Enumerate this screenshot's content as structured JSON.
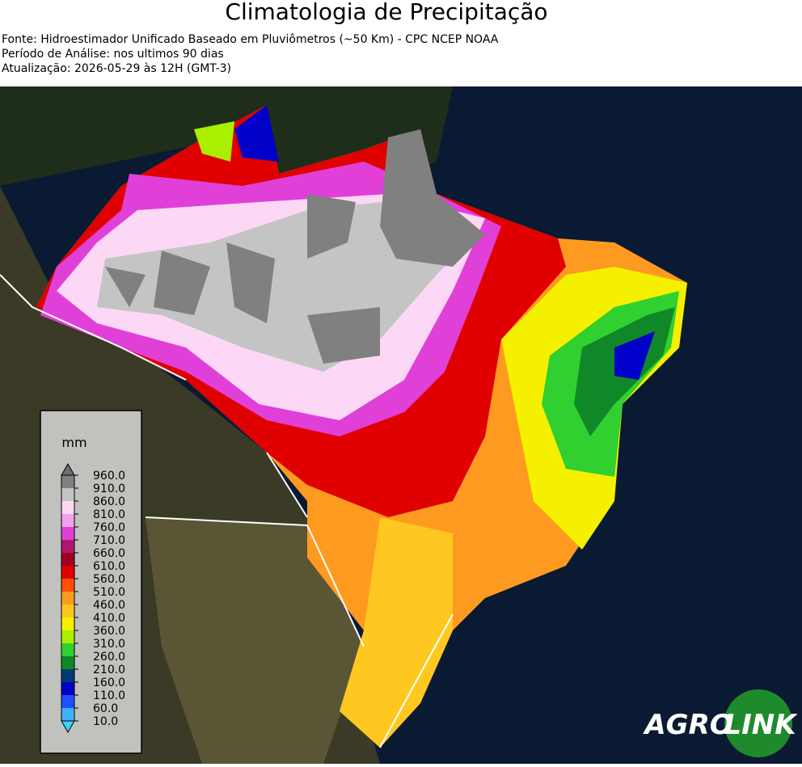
{
  "header": {
    "title": "Climatologia de Precipitação",
    "lines": [
      "Fonte: Hidroestimador Unificado Baseado em Pluviômetros (~50 Km) - CPC NCEP NOAA",
      "Período de Análise: nos ultimos 90 dias",
      "Atualização: 2026-05-29 às 12H (GMT-3)"
    ]
  },
  "legend": {
    "unit": "mm",
    "labels": [
      "960.0",
      "910.0",
      "860.0",
      "810.0",
      "760.0",
      "710.0",
      "660.0",
      "610.0",
      "560.0",
      "510.0",
      "460.0",
      "410.0",
      "360.0",
      "310.0",
      "260.0",
      "210.0",
      "160.0",
      "110.0",
      "60.0",
      "10.0"
    ],
    "colors": [
      "#808080",
      "#c4c4c4",
      "#fcd8f6",
      "#f0a0ec",
      "#e040d8",
      "#b01870",
      "#a00020",
      "#e00000",
      "#ff5000",
      "#ff9a20",
      "#ffc820",
      "#f4f000",
      "#a8f000",
      "#30d030",
      "#108828",
      "#003878",
      "#0000c8",
      "#1e50ff",
      "#40b0ff"
    ],
    "over_color": "#6e6e6e",
    "under_color": "#40d0ff"
  },
  "logo": {
    "left": "AGRO",
    "right": "LINK"
  }
}
